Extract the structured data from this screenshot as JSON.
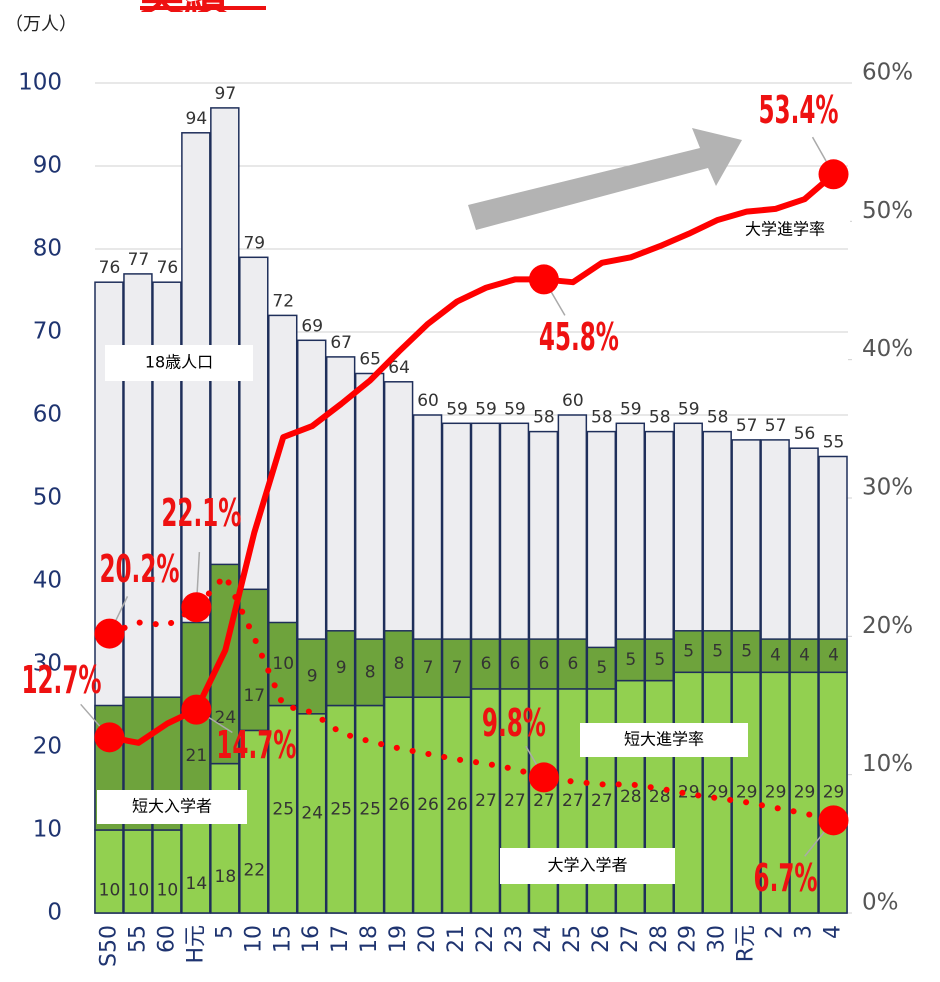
{
  "chart_data": {
    "type": "bar-line",
    "title": "実績",
    "ylabel": "（万人）",
    "categories": [
      "S50",
      "55",
      "60",
      "H元",
      "5",
      "10",
      "15",
      "16",
      "17",
      "18",
      "19",
      "20",
      "21",
      "22",
      "23",
      "24",
      "25",
      "26",
      "27",
      "28",
      "29",
      "30",
      "R元",
      "2",
      "3",
      "4"
    ],
    "series": [
      {
        "name": "18歳人口",
        "color": "#ededf0",
        "values": [
          76,
          77,
          76,
          94,
          97,
          79,
          72,
          69,
          67,
          65,
          64,
          60,
          59,
          59,
          59,
          58,
          60,
          58,
          59,
          58,
          59,
          58,
          57,
          57,
          56,
          55
        ]
      },
      {
        "name": "大学入学者",
        "color": "#92d050",
        "stack": true,
        "values": [
          10,
          10,
          10,
          14,
          18,
          22,
          25,
          24,
          25,
          25,
          26,
          26,
          26,
          27,
          27,
          27,
          27,
          27,
          28,
          28,
          29,
          29,
          29,
          29,
          29,
          29
        ]
      },
      {
        "name": "短大入学者",
        "color": "#6ea33c",
        "stack": true,
        "values": [
          15,
          16,
          16,
          21,
          24,
          17,
          10,
          9,
          9,
          8,
          8,
          7,
          7,
          6,
          6,
          6,
          6,
          5,
          5,
          5,
          5,
          5,
          5,
          4,
          4,
          4
        ]
      },
      {
        "name": "大学進学率",
        "color": "#ff0000",
        "axis": "y2",
        "line": "solid",
        "values": [
          12.7,
          12.3,
          13.7,
          14.7,
          19.0,
          27.5,
          34.4,
          35.2,
          36.8,
          38.5,
          40.6,
          42.6,
          44.2,
          45.2,
          45.8,
          45.8,
          45.6,
          47.0,
          47.4,
          48.2,
          49.1,
          50.1,
          50.7,
          50.9,
          51.6,
          53.4
        ],
        "value_labels": [
          "12.7%",
          null,
          null,
          "14.7%",
          null,
          null,
          null,
          null,
          null,
          null,
          null,
          null,
          null,
          null,
          null,
          "45.8%",
          null,
          null,
          null,
          null,
          null,
          null,
          null,
          null,
          null,
          "53.4%"
        ]
      },
      {
        "name": "短大進学率",
        "color": "#ff0000",
        "axis": "y2",
        "line": "dotted",
        "values": [
          20.2,
          21.0,
          20.8,
          22.1,
          24.4,
          19.9,
          15.0,
          14.5,
          13.0,
          12.4,
          11.9,
          11.5,
          11.1,
          10.8,
          10.4,
          9.8,
          9.5,
          9.3,
          9.3,
          9.0,
          8.6,
          8.3,
          8.0,
          7.6,
          7.2,
          6.7
        ],
        "value_labels": [
          "20.2%",
          null,
          null,
          "22.1%",
          null,
          null,
          null,
          null,
          null,
          null,
          null,
          null,
          null,
          null,
          null,
          "9.8%",
          null,
          null,
          null,
          null,
          null,
          null,
          null,
          null,
          null,
          "6.7%"
        ]
      }
    ],
    "ylim": [
      0,
      100
    ],
    "yticks": [
      0,
      10,
      20,
      30,
      40,
      50,
      60,
      70,
      80,
      90,
      100
    ],
    "y2lim": [
      0,
      60
    ],
    "y2ticks": [
      {
        "value": 0,
        "label": "0%"
      },
      {
        "value": 10,
        "label": "10%"
      },
      {
        "value": 20,
        "label": "20%"
      },
      {
        "value": 30,
        "label": "30%"
      },
      {
        "value": 40,
        "label": "40%"
      },
      {
        "value": 50,
        "label": "50%"
      },
      {
        "value": 60,
        "label": "60%"
      }
    ],
    "grid": true
  }
}
